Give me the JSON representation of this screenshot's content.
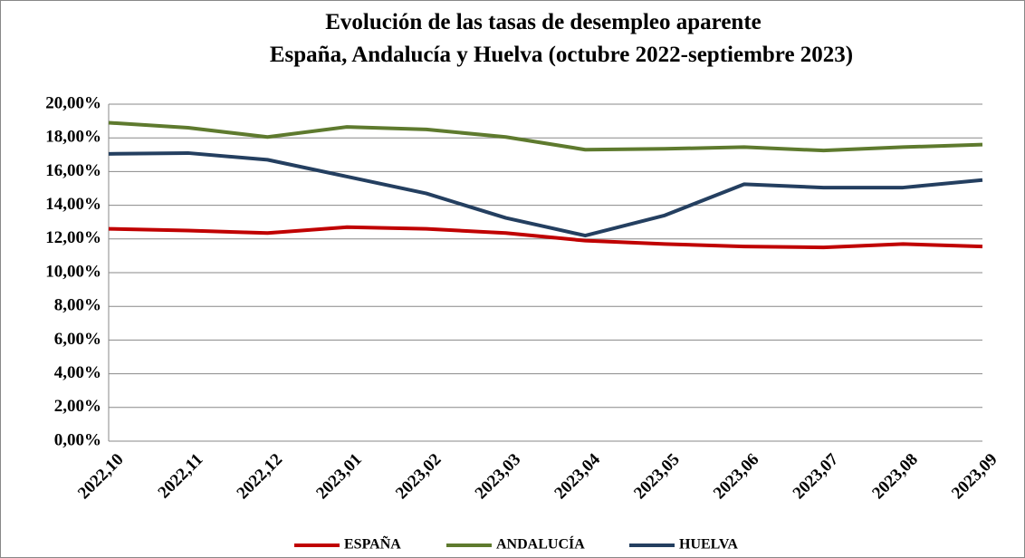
{
  "chart_data": {
    "type": "line",
    "title": "Evolución de las tasas de desempleo aparente",
    "subtitle": "España, Andalucía y Huelva (octubre 2022-septiembre 2023)",
    "categories": [
      "2022,10",
      "2022,11",
      "2022,12",
      "2023,01",
      "2023,02",
      "2023,03",
      "2023,04",
      "2023,05",
      "2023,06",
      "2023,07",
      "2023,08",
      "2023,09"
    ],
    "series": [
      {
        "name": "ESPAÑA",
        "color": "#c00000",
        "values": [
          12.6,
          12.5,
          12.35,
          12.7,
          12.6,
          12.35,
          11.9,
          11.7,
          11.55,
          11.5,
          11.7,
          11.55
        ]
      },
      {
        "name": "ANDALUCÍA",
        "color": "#5e7a2e",
        "values": [
          18.9,
          18.6,
          18.05,
          18.65,
          18.5,
          18.05,
          17.3,
          17.35,
          17.45,
          17.25,
          17.45,
          17.6
        ]
      },
      {
        "name": "HUELVA",
        "color": "#243f60",
        "values": [
          17.05,
          17.1,
          16.7,
          15.7,
          14.7,
          13.25,
          12.2,
          13.4,
          15.25,
          15.05,
          15.05,
          15.5
        ]
      }
    ],
    "ylim": [
      0,
      20
    ],
    "yticks": [
      {
        "value": 0,
        "label": "0,00%"
      },
      {
        "value": 2,
        "label": "2,00%"
      },
      {
        "value": 4,
        "label": "4,00%"
      },
      {
        "value": 6,
        "label": "6,00%"
      },
      {
        "value": 8,
        "label": "8,00%"
      },
      {
        "value": 10,
        "label": "10,00%"
      },
      {
        "value": 12,
        "label": "12,00%"
      },
      {
        "value": 14,
        "label": "14,00%"
      },
      {
        "value": 16,
        "label": "16,00%"
      },
      {
        "value": 18,
        "label": "18,00%"
      },
      {
        "value": 20,
        "label": "20,00%"
      }
    ],
    "grid": true,
    "legend": "bottom"
  }
}
